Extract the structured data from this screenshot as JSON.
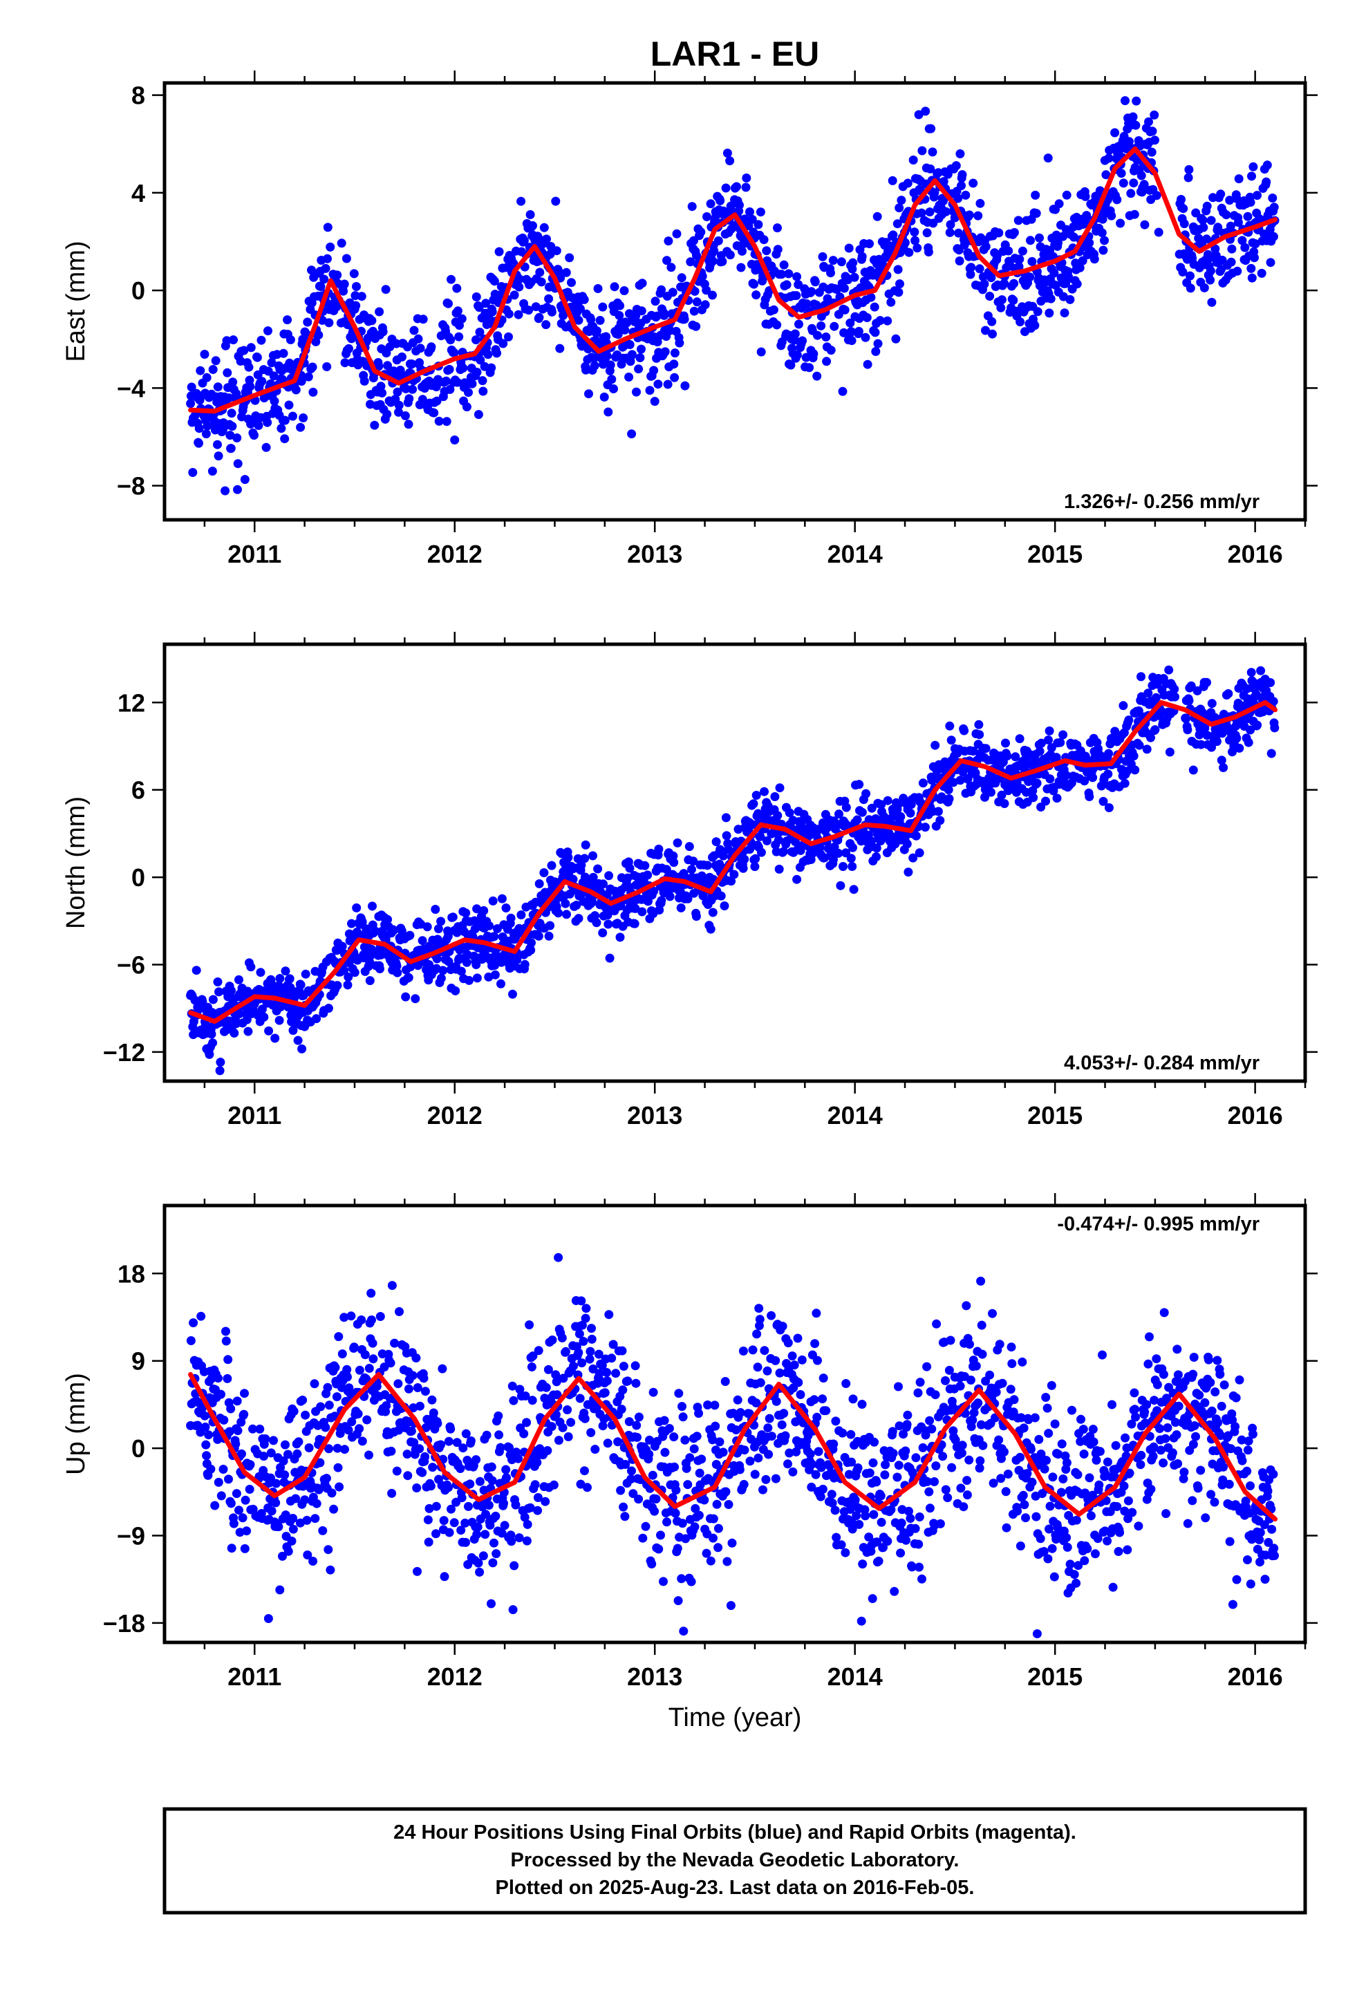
{
  "title": "LAR1 - EU",
  "xlabel": "Time (year)",
  "footer_lines": [
    "24 Hour Positions Using Final Orbits (blue) and Rapid Orbits (magenta).",
    "Processed by the Nevada Geodetic Laboratory.",
    "Plotted on 2025-Aug-23. Last data on 2016-Feb-05."
  ],
  "colors": {
    "final_orbits": "#0000ff",
    "model_fit": "#ff0000",
    "frame": "#000000"
  },
  "chart_data": [
    {
      "type": "scatter",
      "component": "east",
      "ylabel": "East (mm)",
      "rate_label": "1.326+/- 0.256 mm/yr",
      "xlim": [
        2010.55,
        2016.25
      ],
      "ylim": [
        -9.4,
        8.5
      ],
      "xticks": [
        2011,
        2012,
        2013,
        2014,
        2015,
        2016
      ],
      "yticks": [
        -8,
        -4,
        0,
        4,
        8
      ],
      "x_start": 2010.68,
      "x_end": 2016.1,
      "fit": {
        "rate": 1.326,
        "seasonal_series": [
          [
            2010.68,
            -4.9
          ],
          [
            2010.8,
            -4.95
          ],
          [
            2011.0,
            -4.3
          ],
          [
            2011.1,
            -4.0
          ],
          [
            2011.2,
            -3.7
          ],
          [
            2011.3,
            -1.5
          ],
          [
            2011.38,
            0.4
          ],
          [
            2011.5,
            -1.5
          ],
          [
            2011.6,
            -3.3
          ],
          [
            2011.72,
            -3.8
          ],
          [
            2011.85,
            -3.3
          ],
          [
            2012.0,
            -2.8
          ],
          [
            2012.1,
            -2.6
          ],
          [
            2012.2,
            -1.5
          ],
          [
            2012.3,
            0.8
          ],
          [
            2012.4,
            1.8
          ],
          [
            2012.5,
            0.5
          ],
          [
            2012.6,
            -1.5
          ],
          [
            2012.72,
            -2.5
          ],
          [
            2012.85,
            -2.0
          ],
          [
            2013.0,
            -1.5
          ],
          [
            2013.1,
            -1.2
          ],
          [
            2013.2,
            0.5
          ],
          [
            2013.3,
            2.5
          ],
          [
            2013.4,
            3.1
          ],
          [
            2013.5,
            1.8
          ],
          [
            2013.62,
            -0.4
          ],
          [
            2013.72,
            -1.1
          ],
          [
            2013.85,
            -0.8
          ],
          [
            2014.0,
            -0.2
          ],
          [
            2014.1,
            0.0
          ],
          [
            2014.2,
            1.5
          ],
          [
            2014.3,
            3.5
          ],
          [
            2014.4,
            4.5
          ],
          [
            2014.5,
            3.5
          ],
          [
            2014.62,
            1.4
          ],
          [
            2014.72,
            0.6
          ],
          [
            2014.85,
            0.8
          ],
          [
            2015.0,
            1.2
          ],
          [
            2015.1,
            1.6
          ],
          [
            2015.2,
            3.0
          ],
          [
            2015.3,
            5.0
          ],
          [
            2015.4,
            5.8
          ],
          [
            2015.5,
            4.8
          ],
          [
            2015.62,
            2.3
          ],
          [
            2015.72,
            1.6
          ],
          [
            2015.85,
            2.2
          ],
          [
            2016.0,
            2.6
          ],
          [
            2016.1,
            2.9
          ]
        ]
      },
      "noise_sd": 1.2
    },
    {
      "type": "scatter",
      "component": "north",
      "ylabel": "North (mm)",
      "rate_label": "4.053+/- 0.284 mm/yr",
      "xlim": [
        2010.55,
        2016.25
      ],
      "ylim": [
        -14,
        16
      ],
      "xticks": [
        2011,
        2012,
        2013,
        2014,
        2015,
        2016
      ],
      "yticks": [
        -12,
        -6,
        0,
        6,
        12
      ],
      "x_start": 2010.68,
      "x_end": 2016.1,
      "fit": {
        "rate": 4.053,
        "seasonal_series": [
          [
            2010.68,
            -9.3
          ],
          [
            2010.8,
            -9.9
          ],
          [
            2011.0,
            -8.2
          ],
          [
            2011.1,
            -8.3
          ],
          [
            2011.25,
            -8.8
          ],
          [
            2011.4,
            -6.5
          ],
          [
            2011.52,
            -4.3
          ],
          [
            2011.65,
            -4.6
          ],
          [
            2011.78,
            -5.8
          ],
          [
            2011.9,
            -5.2
          ],
          [
            2012.05,
            -4.3
          ],
          [
            2012.15,
            -4.5
          ],
          [
            2012.3,
            -5.1
          ],
          [
            2012.42,
            -2.5
          ],
          [
            2012.55,
            -0.3
          ],
          [
            2012.68,
            -1.0
          ],
          [
            2012.78,
            -1.8
          ],
          [
            2012.92,
            -1.0
          ],
          [
            2013.05,
            -0.1
          ],
          [
            2013.15,
            -0.3
          ],
          [
            2013.28,
            -1.0
          ],
          [
            2013.4,
            1.5
          ],
          [
            2013.53,
            3.6
          ],
          [
            2013.65,
            3.3
          ],
          [
            2013.78,
            2.3
          ],
          [
            2013.9,
            2.8
          ],
          [
            2014.05,
            3.6
          ],
          [
            2014.15,
            3.5
          ],
          [
            2014.28,
            3.2
          ],
          [
            2014.4,
            6.0
          ],
          [
            2014.53,
            8.0
          ],
          [
            2014.65,
            7.6
          ],
          [
            2014.78,
            6.8
          ],
          [
            2014.9,
            7.3
          ],
          [
            2015.05,
            8.0
          ],
          [
            2015.15,
            7.7
          ],
          [
            2015.28,
            7.8
          ],
          [
            2015.4,
            10.0
          ],
          [
            2015.53,
            12.0
          ],
          [
            2015.65,
            11.5
          ],
          [
            2015.78,
            10.5
          ],
          [
            2015.9,
            11.0
          ],
          [
            2016.05,
            12.0
          ],
          [
            2016.1,
            11.5
          ]
        ]
      },
      "noise_sd": 1.2
    },
    {
      "type": "scatter",
      "component": "up",
      "ylabel": "Up (mm)",
      "rate_label": "-0.474+/- 0.995 mm/yr",
      "xlim": [
        2010.55,
        2016.25
      ],
      "ylim": [
        -20,
        25
      ],
      "xticks": [
        2011,
        2012,
        2013,
        2014,
        2015,
        2016
      ],
      "yticks": [
        -18,
        -9,
        0,
        9,
        18
      ],
      "x_start": 2010.68,
      "x_end": 2016.1,
      "fit": {
        "rate": -0.474,
        "seasonal_series": [
          [
            2010.68,
            7.6
          ],
          [
            2010.8,
            3.0
          ],
          [
            2010.95,
            -2.5
          ],
          [
            2011.1,
            -4.9
          ],
          [
            2011.25,
            -3.0
          ],
          [
            2011.45,
            4.0
          ],
          [
            2011.62,
            7.6
          ],
          [
            2011.8,
            3.0
          ],
          [
            2011.95,
            -2.5
          ],
          [
            2012.12,
            -5.3
          ],
          [
            2012.3,
            -3.5
          ],
          [
            2012.45,
            3.0
          ],
          [
            2012.62,
            7.2
          ],
          [
            2012.8,
            3.0
          ],
          [
            2012.95,
            -3.0
          ],
          [
            2013.1,
            -6.0
          ],
          [
            2013.3,
            -4.0
          ],
          [
            2013.45,
            2.0
          ],
          [
            2013.62,
            6.6
          ],
          [
            2013.8,
            2.0
          ],
          [
            2013.95,
            -3.5
          ],
          [
            2014.12,
            -6.2
          ],
          [
            2014.3,
            -3.5
          ],
          [
            2014.45,
            2.0
          ],
          [
            2014.62,
            6.0
          ],
          [
            2014.8,
            1.5
          ],
          [
            2014.95,
            -4.0
          ],
          [
            2015.12,
            -6.8
          ],
          [
            2015.3,
            -4.0
          ],
          [
            2015.45,
            1.5
          ],
          [
            2015.62,
            5.6
          ],
          [
            2015.8,
            1.0
          ],
          [
            2015.95,
            -4.5
          ],
          [
            2016.1,
            -7.3
          ]
        ]
      },
      "noise_sd": 4.6
    }
  ]
}
